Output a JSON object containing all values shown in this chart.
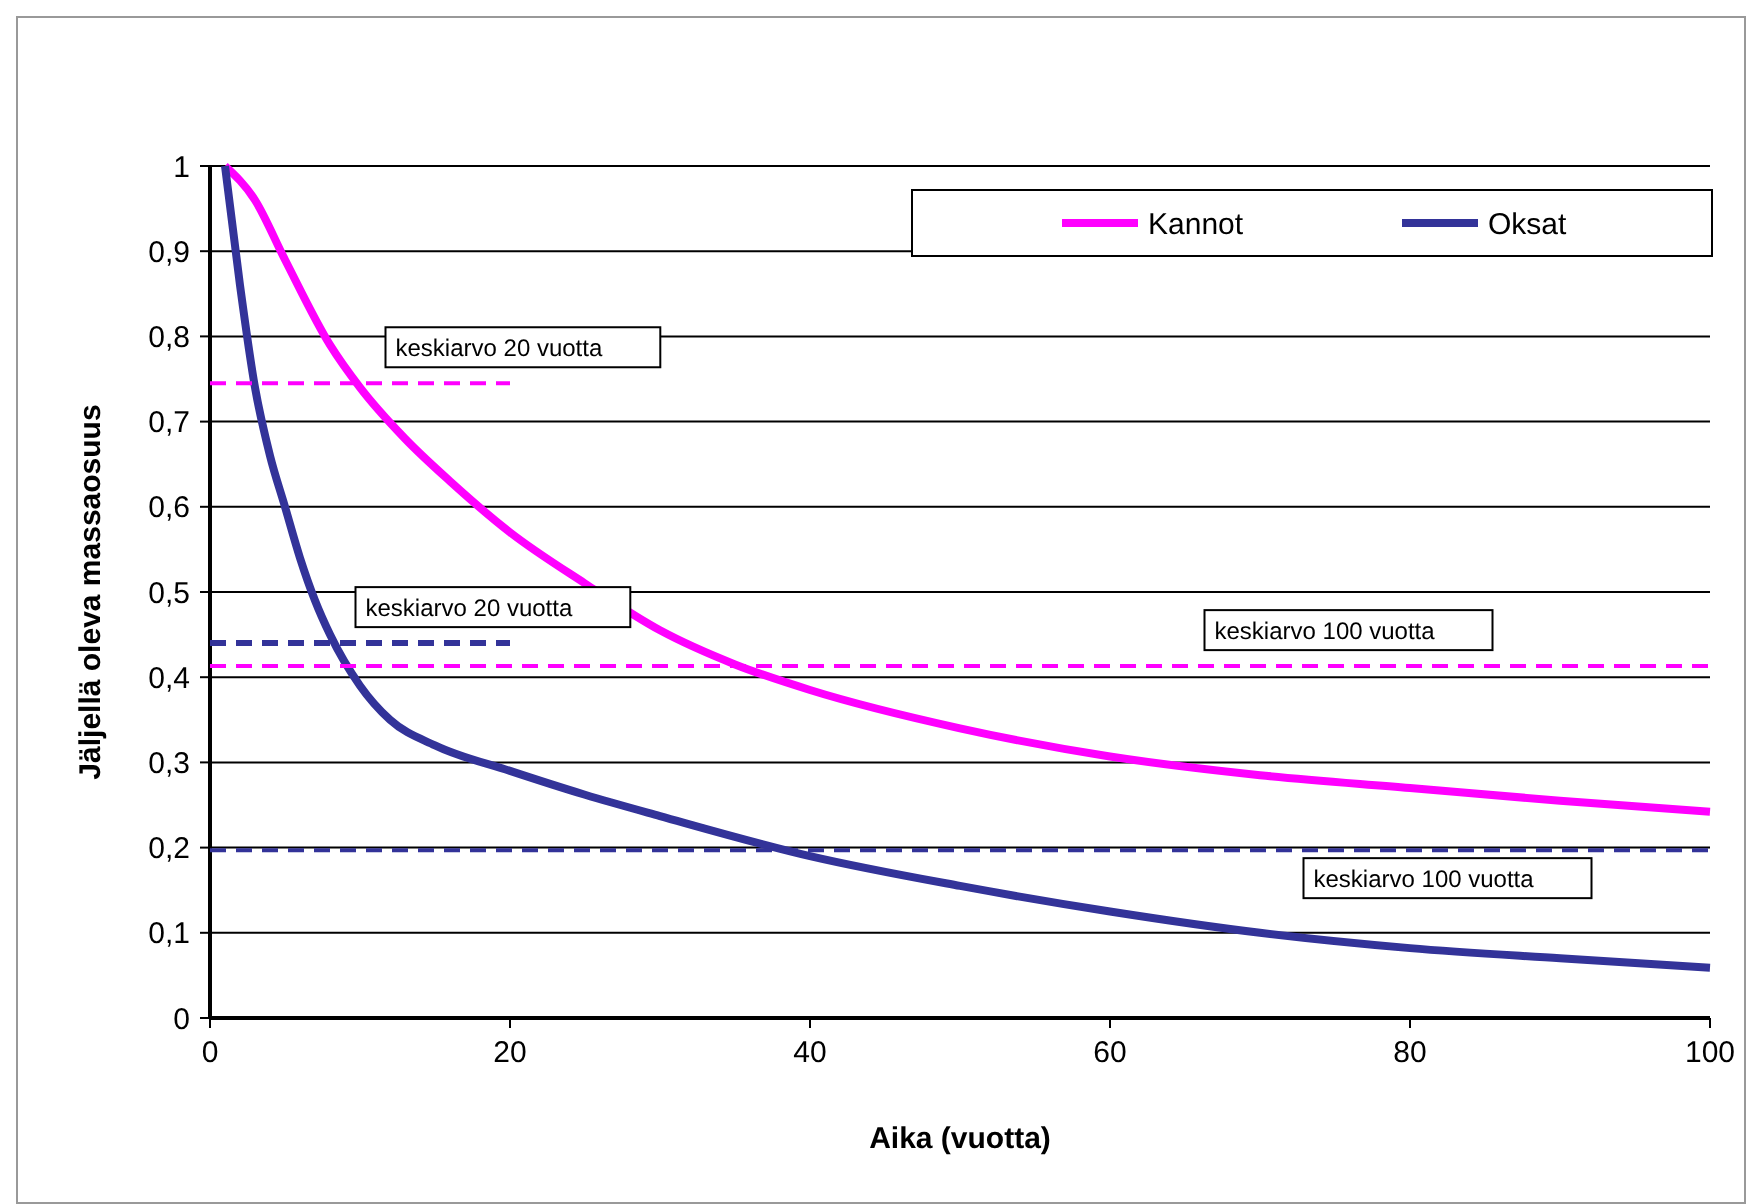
{
  "chart_data": {
    "type": "line",
    "xlabel": "Aika (vuotta)",
    "ylabel": "Jäljellä oleva massaosuus",
    "xlim": [
      0,
      100
    ],
    "xticks": [
      0,
      20,
      40,
      60,
      80,
      100
    ],
    "ylim": [
      0,
      1
    ],
    "yticks": [
      0,
      {
        "value": 0.1,
        "label": "0,1"
      },
      {
        "value": 0.2,
        "label": "0,2"
      },
      {
        "value": 0.3,
        "label": "0,3"
      },
      {
        "value": 0.4,
        "label": "0,4"
      },
      {
        "value": 0.5,
        "label": "0,5"
      },
      {
        "value": 0.6,
        "label": "0,6"
      },
      {
        "value": 0.7,
        "label": "0,7"
      },
      {
        "value": 0.8,
        "label": "0,8"
      },
      {
        "value": 0.9,
        "label": "0,9"
      },
      1
    ],
    "grid": "y",
    "legend": "top right",
    "line_style": "solid",
    "marker": "none",
    "series": [
      {
        "name": "Kannot",
        "color": "#ff00ff",
        "x": [
          1,
          3,
          5,
          8,
          10,
          13,
          16,
          20,
          25,
          30,
          35,
          40,
          50,
          60,
          70,
          80,
          90,
          100
        ],
        "values": [
          1,
          0.96,
          0.89,
          0.79,
          0.74,
          0.68,
          0.63,
          0.57,
          0.51,
          0.455,
          0.415,
          0.385,
          0.34,
          0.307,
          0.285,
          0.27,
          0.255,
          0.242
        ]
      },
      {
        "name": "Oksat",
        "color": "#333399",
        "x": [
          1,
          2,
          3,
          4,
          5,
          6,
          7,
          8,
          10,
          12,
          15,
          20,
          25,
          30,
          40,
          50,
          60,
          70,
          80,
          90,
          100
        ],
        "values": [
          1,
          0.86,
          0.74,
          0.66,
          0.6,
          0.54,
          0.49,
          0.45,
          0.39,
          0.35,
          0.32,
          0.29,
          0.262,
          0.237,
          0.19,
          0.155,
          0.125,
          0.1,
          0.082,
          0.07,
          0.059
        ]
      },
      {
        "color": "#ff00ff",
        "line_style": "dashed",
        "x": [
          0,
          20
        ],
        "values": [
          0.745,
          0.745
        ]
      },
      {
        "color": "#ff00ff",
        "line_style": "dashed",
        "x": [
          0,
          100
        ],
        "values": [
          0.413,
          0.413
        ]
      },
      {
        "color": "#333399",
        "line_style": "dashed",
        "x": [
          0,
          20
        ],
        "values": [
          0.44,
          0.44
        ]
      },
      {
        "color": "#333399",
        "line_style": "dashed",
        "x": [
          0,
          100
        ],
        "values": [
          0.197,
          0.197
        ]
      }
    ],
    "annotations": [
      {
        "text": "keskiarvo 20 vuotta",
        "x": 11.7,
        "y": 0.745
      },
      {
        "text": "keskiarvo 20 vuotta",
        "x": 9.7,
        "y": 0.44
      },
      {
        "text": "keskiarvo 100 vuotta",
        "x": 66.3,
        "y": 0.413
      },
      {
        "text": "keskiarvo 100 vuotta",
        "x": 72.9,
        "y": 0.197
      }
    ]
  }
}
